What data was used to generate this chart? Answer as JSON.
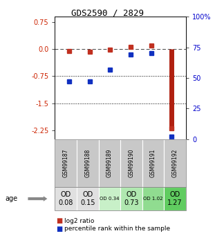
{
  "title": "GDS2590 / 2829",
  "samples": [
    "GSM99187",
    "GSM99188",
    "GSM99189",
    "GSM99190",
    "GSM99191",
    "GSM99192"
  ],
  "log2_ratio": [
    -0.05,
    -0.07,
    -0.02,
    0.07,
    0.09,
    -2.2
  ],
  "percentile_rank": [
    47,
    47,
    57,
    69,
    70,
    2
  ],
  "age_labels": [
    "OD\n0.08",
    "OD\n0.15",
    "OD 0.34",
    "OD\n0.73",
    "OD 1.02",
    "OD\n1.27"
  ],
  "age_fontsize": [
    8,
    8,
    6,
    8,
    6,
    8
  ],
  "cell_colors": [
    "#e0e0e0",
    "#e0e0e0",
    "#c8f0c8",
    "#b0e8b0",
    "#90dc90",
    "#60cc60"
  ],
  "sample_cell_color": "#c8c8c8",
  "left_yticks": [
    0.75,
    0.0,
    -0.75,
    -1.5,
    -2.25
  ],
  "right_yticks": [
    100,
    75,
    50,
    25,
    0
  ],
  "ylim_left": [
    -2.5,
    0.9
  ],
  "bar_color": "#b02010",
  "dot_color_red": "#c03020",
  "dot_color_blue": "#1030c0",
  "dotted_lines": [
    -0.75,
    -1.5
  ],
  "background_color": "#ffffff",
  "label_color_left": "#cc2200",
  "label_color_right": "#0000cc"
}
